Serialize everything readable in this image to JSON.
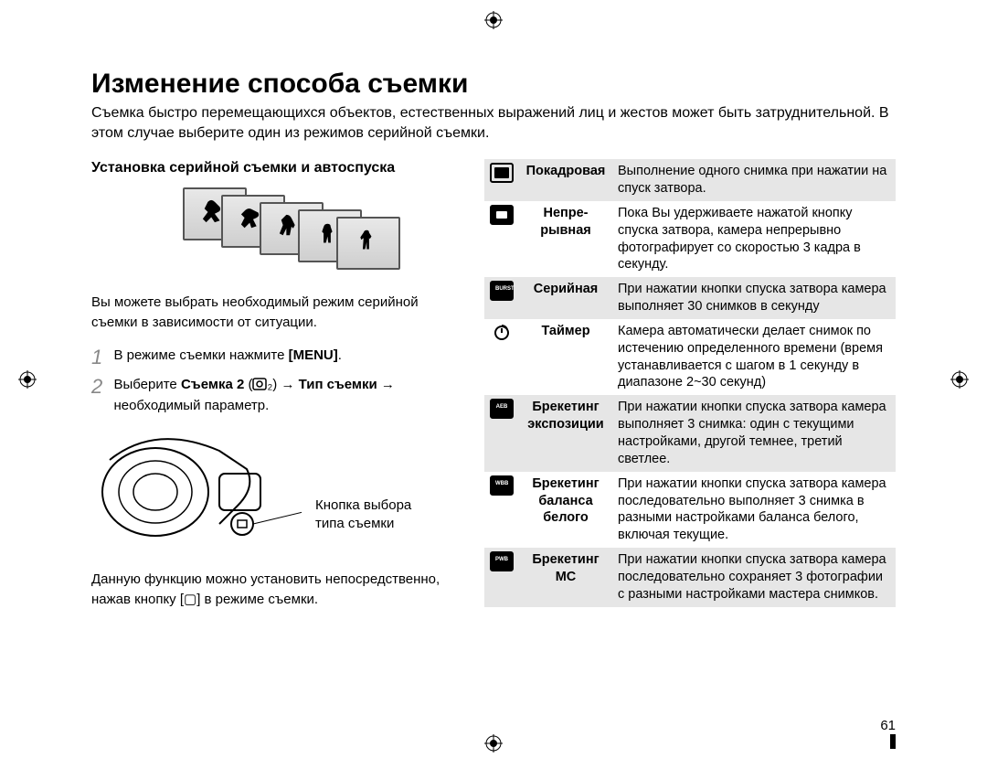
{
  "page_number": "61",
  "title": "Изменение способа съемки",
  "intro": "Съемка быстро перемещающихся объектов, естественных выражений лиц и жестов может быть затруднительной. В этом случае выберите один из режимов серийной съемки.",
  "subsection_title": "Установка серийной съемки и автоспуска",
  "para_intro": "Вы можете выбрать необходимый режим серийной съемки в зависимости от ситуации.",
  "step1_num": "1",
  "step1_a": "В режиме съемки нажмите ",
  "step1_b": "[MENU]",
  "step1_c": ".",
  "step2_num": "2",
  "step2_a": "Выберите ",
  "step2_b": "Съемка 2",
  "step2_c": " (",
  "step2_d": "₂) → ",
  "step2_e": "Тип съемки",
  "step2_f": " → необходимый параметр.",
  "callout_l1": "Кнопка выбора",
  "callout_l2": "типа съемки",
  "para_after": "Данную функцию можно установить непосредственно, нажав кнопку [▢] в режиме съемки.",
  "modes": [
    {
      "label": "Покадровая",
      "desc": "Выполнение одного снимка при нажатии на спуск затвора.",
      "shade": true,
      "icon": "single"
    },
    {
      "label": "Непре-\nрывная",
      "desc": "Пока Вы удерживаете нажатой кнопку спуска затвора, камера непрерывно фотографирует со скоростью 3 кадра в секунду.",
      "shade": false,
      "icon": "cont"
    },
    {
      "label": "Серийная",
      "desc": "При нажатии кнопки спуска затвора камера выполняет 30 снимков в секунду",
      "shade": true,
      "icon": "burst"
    },
    {
      "label": "Таймер",
      "desc": "Камера автоматически делает снимок по истечению определенного времени (время устанавливается с шагом в 1 секунду в диапазоне 2~30 секунд)",
      "shade": false,
      "icon": "timer"
    },
    {
      "label": "Брекетинг экспозиции",
      "desc": "При нажатии кнопки спуска затвора камера выполняет 3 снимка: один с текущими настройками, другой темнее, третий светлее.",
      "shade": true,
      "icon": "aeb"
    },
    {
      "label": "Брекетинг баланса белого",
      "desc": "При нажатии кнопки спуска затвора камера последовательно выполняет 3 снимка в разными настройками баланса белого, включая текущие.",
      "shade": false,
      "icon": "wbb"
    },
    {
      "label": "Брекетинг МС",
      "desc": "При нажатии кнопки спуска затвора камера последовательно сохраняет 3 фотографии с разными настройками мастера снимков.",
      "shade": true,
      "icon": "pwb"
    }
  ],
  "colors": {
    "text": "#000000",
    "grey_num": "#888888",
    "shade_row": "#e6e6e6",
    "frame_border": "#555555"
  }
}
